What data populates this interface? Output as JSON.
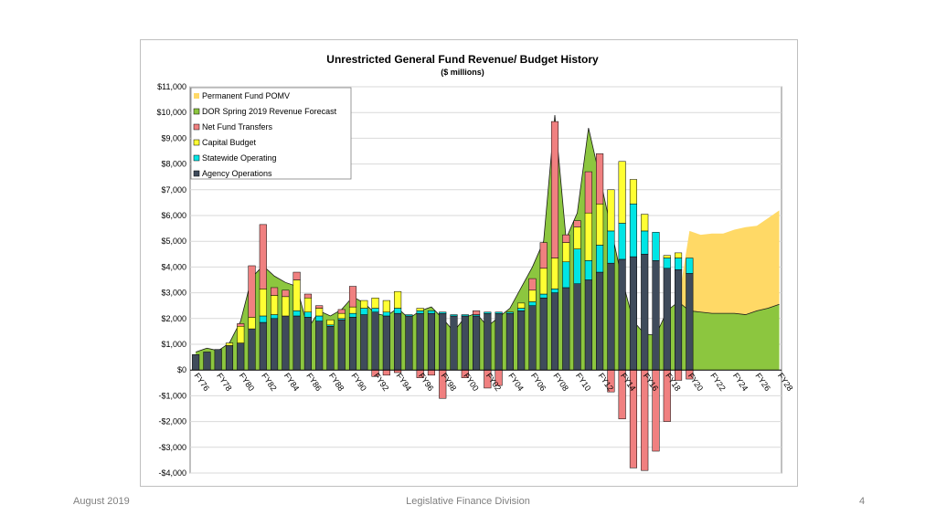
{
  "footer": {
    "left": "August 2019",
    "center": "Legislative Finance Division",
    "page": "4"
  },
  "chart_data": {
    "type": "bar",
    "title": "Unrestricted General Fund Revenue/ Budget History",
    "subtitle": "($ millions)",
    "ylim": [
      -4000,
      11000
    ],
    "y_ticks": [
      11000,
      10000,
      9000,
      8000,
      7000,
      6000,
      5000,
      4000,
      3000,
      2000,
      1000,
      0,
      -1000,
      -2000,
      -3000,
      -4000
    ],
    "y_tick_labels": [
      "$11,000",
      "$10,000",
      "$9,000",
      "$8,000",
      "$7,000",
      "$6,000",
      "$5,000",
      "$4,000",
      "$3,000",
      "$2,000",
      "$1,000",
      "$0",
      "-$1,000",
      "-$2,000",
      "-$3,000",
      "-$4,000"
    ],
    "categories": [
      "FY76",
      "FY77",
      "FY78",
      "FY79",
      "FY80",
      "FY81",
      "FY82",
      "FY83",
      "FY84",
      "FY85",
      "FY86",
      "FY87",
      "FY88",
      "FY89",
      "FY90",
      "FY91",
      "FY92",
      "FY93",
      "FY94",
      "FY95",
      "FY96",
      "FY97",
      "FY98",
      "FY99",
      "FY00",
      "FY01",
      "FY02",
      "FY03",
      "FY04",
      "FY05",
      "FY06",
      "FY07",
      "FY08",
      "FY09",
      "FY10",
      "FY11",
      "FY12",
      "FY13",
      "FY14",
      "FY15",
      "FY16",
      "FY17",
      "FY18",
      "FY19",
      "FY20",
      "FY21",
      "FY22",
      "FY23",
      "FY24",
      "FY25",
      "FY26",
      "FY27",
      "FY28"
    ],
    "x_tick_labels": [
      "FY76",
      "FY78",
      "FY80",
      "FY82",
      "FY84",
      "FY86",
      "FY88",
      "FY90",
      "FY92",
      "FY94",
      "FY96",
      "FY98",
      "FY00",
      "FY02",
      "FY04",
      "FY06",
      "FY08",
      "FY10",
      "FY12",
      "FY14",
      "FY16",
      "FY18",
      "FY20",
      "FY22",
      "FY24",
      "FY26",
      "FY28"
    ],
    "legend": [
      "Permanent Fund POMV",
      "DOR Spring 2019 Revenue Forecast",
      "Net Fund Transfers",
      "Capital Budget",
      "Statewide Operating",
      "Agency Operations"
    ],
    "legend_position": "top-left",
    "colors": {
      "pomv": "#ffd966",
      "revenue": "#8cc63f",
      "transfers": "#f08080",
      "capital": "#ffff33",
      "statewide": "#00e5e5",
      "agency": "#3f4b5b",
      "grid": "#d9d9d9",
      "axis": "#000000"
    },
    "revenue_forecast": [
      700,
      850,
      750,
      1050,
      1900,
      3600,
      4050,
      3650,
      3400,
      3250,
      1600,
      2300,
      2100,
      2350,
      2850,
      2600,
      2200,
      2100,
      2400,
      2000,
      2300,
      2450,
      2000,
      1500,
      2050,
      2200,
      1700,
      2050,
      2400,
      3200,
      4000,
      5000,
      9900,
      5100,
      6100,
      9400,
      7500,
      5500,
      3500,
      1900,
      1400,
      1350,
      2300,
      2650,
      2300,
      2250,
      2200,
      2200,
      2200,
      2150,
      2300,
      2400,
      2550
    ],
    "pomv_forecast_years": [
      "FY19",
      "FY20",
      "FY21",
      "FY22",
      "FY23",
      "FY24",
      "FY25",
      "FY26",
      "FY27",
      "FY28"
    ],
    "pomv_forecast_top": [
      2650,
      5400,
      5250,
      5300,
      5300,
      5450,
      5550,
      5600,
      5900,
      6200
    ],
    "series": [
      {
        "name": "Agency Operations",
        "values": [
          600,
          700,
          800,
          950,
          1050,
          1600,
          1850,
          2000,
          2100,
          2100,
          2050,
          1900,
          1700,
          1950,
          2050,
          2150,
          2250,
          2100,
          2200,
          2100,
          2200,
          2200,
          2200,
          2100,
          2100,
          2100,
          2200,
          2200,
          2200,
          2300,
          2500,
          2800,
          3000,
          3200,
          3350,
          3500,
          3800,
          4150,
          4300,
          4400,
          4500,
          4250,
          3950,
          3900,
          3750,
          null,
          null,
          null,
          null,
          null,
          null,
          null,
          null
        ]
      },
      {
        "name": "Statewide Operating",
        "values": [
          0,
          0,
          0,
          0,
          0,
          0,
          250,
          150,
          0,
          200,
          200,
          200,
          50,
          50,
          150,
          250,
          150,
          150,
          200,
          50,
          100,
          100,
          50,
          50,
          50,
          50,
          50,
          50,
          50,
          100,
          150,
          150,
          150,
          1000,
          1350,
          750,
          1050,
          1250,
          1400,
          2050,
          900,
          1100,
          400,
          450,
          600,
          null,
          null,
          null,
          null,
          null,
          null,
          null,
          null
        ]
      },
      {
        "name": "Capital Budget",
        "values": [
          0,
          0,
          0,
          100,
          650,
          450,
          1050,
          750,
          750,
          1200,
          550,
          300,
          200,
          200,
          250,
          300,
          400,
          450,
          650,
          0,
          100,
          0,
          0,
          0,
          0,
          0,
          0,
          0,
          0,
          200,
          450,
          1000,
          1200,
          750,
          850,
          1850,
          1600,
          1600,
          2400,
          950,
          650,
          0,
          100,
          200,
          0,
          null,
          null,
          null,
          null,
          null,
          null,
          null,
          null
        ]
      },
      {
        "name": "Net Fund Transfers",
        "values": [
          0,
          0,
          0,
          0,
          100,
          2000,
          2500,
          300,
          250,
          300,
          150,
          100,
          0,
          150,
          800,
          0,
          -250,
          -200,
          -100,
          0,
          -300,
          -200,
          -1100,
          0,
          -300,
          150,
          -700,
          -600,
          0,
          0,
          450,
          1000,
          5300,
          300,
          250,
          1600,
          1950,
          -850,
          -1900,
          -3800,
          -3900,
          -3150,
          -2000,
          -400,
          -350,
          null,
          null,
          null,
          null,
          null,
          null,
          null,
          null
        ]
      }
    ]
  }
}
